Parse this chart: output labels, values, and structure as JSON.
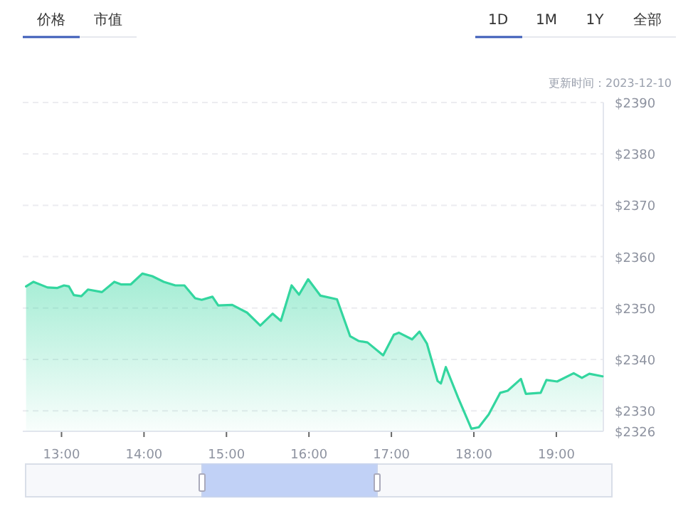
{
  "chart_data": {
    "type": "area",
    "x": [
      12.57,
      12.66,
      12.83,
      12.95,
      13.03,
      13.09,
      13.15,
      13.24,
      13.32,
      13.49,
      13.64,
      13.72,
      13.84,
      13.98,
      14.1,
      14.24,
      14.38,
      14.49,
      14.62,
      14.7,
      14.83,
      14.9,
      15.07,
      15.25,
      15.41,
      15.56,
      15.66,
      15.79,
      15.88,
      15.99,
      16.14,
      16.34,
      16.5,
      16.6,
      16.71,
      16.9,
      17.03,
      17.09,
      17.25,
      17.34,
      17.43,
      17.56,
      17.6,
      17.66,
      17.81,
      17.97,
      18.06,
      18.18,
      18.32,
      18.41,
      18.57,
      18.63,
      18.81,
      18.88,
      19.01,
      19.21,
      19.31,
      19.4,
      19.56
    ],
    "values": [
      2354.2,
      2355.1,
      2354.0,
      2353.9,
      2354.4,
      2354.2,
      2352.5,
      2352.3,
      2353.6,
      2353.1,
      2355.1,
      2354.6,
      2354.6,
      2356.7,
      2356.2,
      2355.1,
      2354.4,
      2354.4,
      2351.9,
      2351.6,
      2352.2,
      2350.5,
      2350.6,
      2349.1,
      2346.6,
      2348.9,
      2347.5,
      2354.4,
      2352.6,
      2355.6,
      2352.4,
      2351.7,
      2344.5,
      2343.6,
      2343.3,
      2340.8,
      2344.8,
      2345.2,
      2343.9,
      2345.4,
      2343.1,
      2335.8,
      2335.3,
      2338.5,
      2332.5,
      2326.5,
      2326.8,
      2329.3,
      2333.5,
      2333.9,
      2336.2,
      2333.3,
      2333.5,
      2336.0,
      2335.7,
      2337.3,
      2336.4,
      2337.2,
      2336.7
    ],
    "color": "#33d69f",
    "xlim": [
      12.53,
      19.57
    ],
    "xticks": [
      {
        "value": 13,
        "label": "13:00"
      },
      {
        "value": 14,
        "label": "14:00"
      },
      {
        "value": 15,
        "label": "15:00"
      },
      {
        "value": 16,
        "label": "16:00"
      },
      {
        "value": 17,
        "label": "17:00"
      },
      {
        "value": 18,
        "label": "18:00"
      },
      {
        "value": 19,
        "label": "19:00"
      }
    ],
    "ylim": [
      2326,
      2390
    ],
    "yticks": [
      {
        "value": 2326,
        "label": "$2326"
      },
      {
        "value": 2330,
        "label": "$2330"
      },
      {
        "value": 2340,
        "label": "$2340"
      },
      {
        "value": 2350,
        "label": "$2350"
      },
      {
        "value": 2360,
        "label": "$2360"
      },
      {
        "value": 2370,
        "label": "$2370"
      },
      {
        "value": 2380,
        "label": "$2380"
      },
      {
        "value": 2390,
        "label": "$2390"
      }
    ],
    "grid": "y",
    "annotations": [
      "价格",
      "市值",
      "1D",
      "1M",
      "1Y",
      "全部",
      "更新时间：2023-12-10"
    ]
  }
}
